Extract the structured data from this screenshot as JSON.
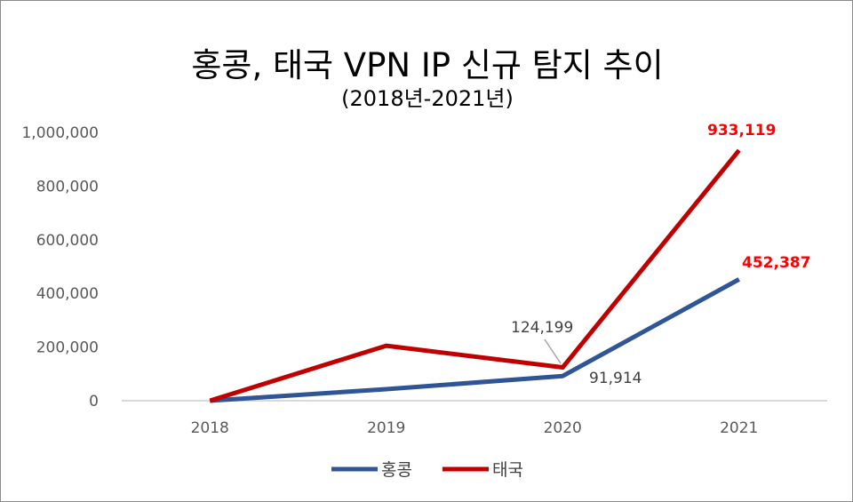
{
  "chart_data": {
    "type": "line",
    "title": "홍콩, 태국  VPN IP 신규 탐지 추이",
    "subtitle": "(2018년-2021년)",
    "xlabel": "",
    "ylabel": "",
    "categories": [
      "2018",
      "2019",
      "2020",
      "2021"
    ],
    "ylim": [
      0,
      1000000
    ],
    "yticks": [
      "0",
      "200,000",
      "400,000",
      "600,000",
      "800,000",
      "1,000,000"
    ],
    "ytick_values": [
      0,
      200000,
      400000,
      600000,
      800000,
      1000000
    ],
    "grid": false,
    "legend_position": "bottom",
    "series": [
      {
        "name": "홍콩",
        "color": "#2f5597",
        "values": [
          0,
          43000,
          91914,
          452387
        ],
        "data_labels": [
          null,
          null,
          "91,914",
          "452,387"
        ]
      },
      {
        "name": "태국",
        "color": "#c00000",
        "values": [
          0,
          205000,
          124199,
          933119
        ],
        "data_labels": [
          null,
          null,
          "124,199",
          "933,119"
        ]
      }
    ],
    "annotation_colors": {
      "normal": "#404040",
      "highlight": "#ff0000"
    }
  }
}
